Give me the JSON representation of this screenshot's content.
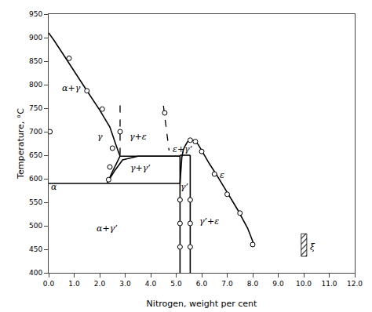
{
  "chart_data": {
    "type": "line",
    "xlabel": "Nitrogen, weight per cent",
    "ylabel": "Temperature, °C",
    "xlim": [
      0,
      12.0
    ],
    "ylim": [
      400,
      950
    ],
    "xticks": [
      {
        "value": 0,
        "label": "0.0"
      },
      {
        "value": 1.0,
        "label": "1.0"
      },
      {
        "value": 2.0,
        "label": "2.0"
      },
      {
        "value": 3.0,
        "label": "3.0"
      },
      {
        "value": 4.0,
        "label": "4.0"
      },
      {
        "value": 5.0,
        "label": "5.0"
      },
      {
        "value": 6.0,
        "label": "6.0"
      },
      {
        "value": 7.0,
        "label": "7.0"
      },
      {
        "value": 8.0,
        "label": "8.0"
      },
      {
        "value": 9.0,
        "label": "9.0"
      },
      {
        "value": 10.0,
        "label": "10.0"
      },
      {
        "value": 11.0,
        "label": "11.0"
      },
      {
        "value": 12.0,
        "label": "12.0"
      }
    ],
    "yticks": [
      400,
      450,
      500,
      550,
      600,
      650,
      700,
      750,
      800,
      850,
      900,
      950
    ],
    "grid": false,
    "series": [
      {
        "type": "line",
        "line_style": "solid",
        "color": "#000000",
        "x": [
          0,
          0.2,
          0.6,
          1.0,
          1.5,
          2.0,
          2.4,
          2.65,
          2.8
        ],
        "values": [
          910,
          895,
          862,
          828,
          787,
          746,
          710,
          670,
          648
        ]
      },
      {
        "type": "line",
        "line_style": "solid",
        "color": "#000000",
        "x": [
          2.8,
          2.65,
          2.5,
          2.4,
          2.3
        ],
        "values": [
          648,
          630,
          615,
          603,
          592
        ]
      },
      {
        "type": "line",
        "line_style": "solid",
        "color": "#000000",
        "x": [
          0,
          5.15
        ],
        "values": [
          590,
          590
        ]
      },
      {
        "type": "line",
        "line_style": "solid",
        "color": "#000000",
        "x": [
          2.3,
          2.6,
          2.9,
          3.5,
          4.0,
          4.5,
          5.0,
          5.15
        ],
        "values": [
          592,
          618,
          640,
          648,
          648,
          648,
          648,
          648
        ]
      },
      {
        "type": "line",
        "line_style": "solid",
        "color": "#000000",
        "x": [
          2.8,
          5.15
        ],
        "values": [
          648,
          648
        ]
      },
      {
        "type": "line",
        "line_style": "solid",
        "color": "#000000",
        "x": [
          5.15,
          5.15
        ],
        "values": [
          590,
          400
        ]
      },
      {
        "type": "line",
        "line_style": "solid",
        "color": "#000000",
        "x": [
          5.55,
          5.55
        ],
        "values": [
          590,
          400
        ]
      },
      {
        "type": "line",
        "line_style": "solid",
        "color": "#000000",
        "x": [
          5.15,
          5.18,
          5.22,
          5.28,
          5.35
        ],
        "values": [
          590,
          620,
          645,
          662,
          670
        ]
      },
      {
        "type": "line",
        "line_style": "solid",
        "color": "#000000",
        "x": [
          5.35,
          5.45,
          5.55,
          5.65,
          5.75,
          5.85
        ],
        "values": [
          670,
          679,
          682,
          682,
          679,
          674
        ]
      },
      {
        "type": "line",
        "line_style": "solid",
        "color": "#000000",
        "x": [
          5.85,
          6.0,
          6.3,
          6.6,
          7.0,
          7.4,
          7.8,
          8.05
        ],
        "values": [
          674,
          660,
          632,
          607,
          570,
          535,
          495,
          460
        ]
      },
      {
        "type": "line",
        "line_style": "solid",
        "color": "#000000",
        "x": [
          5.15,
          5.55
        ],
        "values": [
          650,
          650
        ]
      },
      {
        "type": "line",
        "line_style": "solid",
        "color": "#000000",
        "x": [
          5.15,
          5.15
        ],
        "values": [
          590,
          650
        ]
      },
      {
        "type": "line",
        "line_style": "solid",
        "color": "#000000",
        "x": [
          5.55,
          5.55
        ],
        "values": [
          590,
          650
        ]
      },
      {
        "type": "line",
        "line_style": "dashed",
        "color": "#000000",
        "x": [
          2.8,
          2.8
        ],
        "values": [
          756,
          648
        ]
      },
      {
        "type": "line",
        "line_style": "dashed",
        "color": "#000000",
        "x": [
          4.5,
          4.72
        ],
        "values": [
          755,
          660
        ]
      },
      {
        "type": "scatter",
        "marker": "circle",
        "color": "#000000",
        "x": [
          0.05,
          0.8,
          1.5,
          2.1,
          2.5
        ],
        "values": [
          700,
          856,
          787,
          748,
          665
        ]
      },
      {
        "type": "scatter",
        "marker": "circle",
        "color": "#000000",
        "x": [
          2.4,
          2.35
        ],
        "values": [
          625,
          598
        ]
      },
      {
        "type": "scatter",
        "marker": "circle",
        "color": "#000000",
        "x": [
          5.55,
          5.75,
          6.0,
          6.5,
          7.0,
          7.5,
          8.0
        ],
        "values": [
          682,
          679,
          658,
          610,
          567,
          527,
          460
        ]
      },
      {
        "type": "scatter",
        "marker": "circle",
        "color": "#000000",
        "x": [
          5.15,
          5.15,
          5.15
        ],
        "values": [
          555,
          505,
          455
        ]
      },
      {
        "type": "scatter",
        "marker": "circle",
        "color": "#000000",
        "x": [
          5.55,
          5.55,
          5.55
        ],
        "values": [
          555,
          505,
          455
        ]
      },
      {
        "type": "scatter",
        "marker": "circle",
        "color": "#000000",
        "x": [
          2.8
        ],
        "values": [
          700
        ]
      },
      {
        "type": "scatter",
        "marker": "circle",
        "color": "#000000",
        "x": [
          4.55
        ],
        "values": [
          740
        ]
      }
    ],
    "annotations": [
      {
        "text": "α+γ",
        "x": 0.9,
        "y": 793
      },
      {
        "text": "γ",
        "x": 2.0,
        "y": 690
      },
      {
        "text": "γ+ε",
        "x": 3.5,
        "y": 690
      },
      {
        "text": "ε+γ’",
        "x": 5.25,
        "y": 663
      },
      {
        "text": "γ+γ’",
        "x": 3.6,
        "y": 623
      },
      {
        "text": "α",
        "x": 0.2,
        "y": 583
      },
      {
        "text": "α+γ’",
        "x": 2.3,
        "y": 495
      },
      {
        "text": "γ’",
        "x": 5.33,
        "y": 583
      },
      {
        "text": "ε",
        "x": 6.8,
        "y": 608
      },
      {
        "text": "γ’+ε",
        "x": 6.3,
        "y": 510
      },
      {
        "text": "ξ",
        "x": 10.35,
        "y": 455
      }
    ],
    "xi_box": {
      "x": 9.9,
      "y": 435,
      "width": 0.22,
      "height": 48,
      "color": "#000000"
    }
  }
}
